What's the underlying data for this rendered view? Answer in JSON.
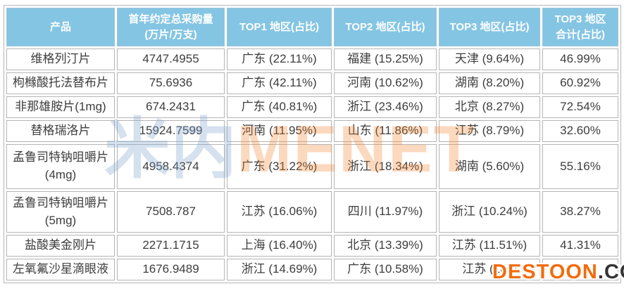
{
  "chart_data": {
    "type": "table",
    "columns": [
      {
        "line1": "产品"
      },
      {
        "line1": "首年约定总采购量",
        "line2": "(万片/万支)"
      },
      {
        "line1": "TOP1 地区(占比)"
      },
      {
        "line1": "TOP2 地区(占比)"
      },
      {
        "line1": "TOP3 地区(占比)"
      },
      {
        "line1": "TOP3 地区",
        "line2": "合计(占比)"
      }
    ],
    "rows": [
      {
        "product": "维格列汀片",
        "volume": "4747.4955",
        "top1": "广东 (22.11%)",
        "top2": "福建 (15.25%)",
        "top3": "天津 (9.64%)",
        "top3_total": "46.99%"
      },
      {
        "product": "枸橼酸托法替布片",
        "volume": "75.6936",
        "top1": "广东 (42.11%)",
        "top2": "河南 (10.62%)",
        "top3": "湖南 (8.20%)",
        "top3_total": "60.92%"
      },
      {
        "product": "非那雄胺片(1mg)",
        "volume": "674.2431",
        "top1": "广东 (40.81%)",
        "top2": "浙江 (23.46%)",
        "top3": "北京 (8.27%)",
        "top3_total": "72.54%"
      },
      {
        "product": "替格瑞洛片",
        "volume": "15924.7599",
        "top1": "河南 (11.95%)",
        "top2": "山东 (11.86%)",
        "top3": "江苏 (8.79%)",
        "top3_total": "32.60%"
      },
      {
        "product": "孟鲁司特钠咀嚼片(4mg)",
        "volume": "4958.4374",
        "top1": "广东 (31.22%)",
        "top2": "浙江 (18.34%)",
        "top3": "湖南 (5.60%)",
        "top3_total": "55.16%"
      },
      {
        "product": "孟鲁司特钠咀嚼片(5mg)",
        "volume": "7508.787",
        "top1": "江苏 (16.06%)",
        "top2": "四川 (11.97%)",
        "top3": "浙江 (10.24%)",
        "top3_total": "38.27%"
      },
      {
        "product": "盐酸美金刚片",
        "volume": "2271.1715",
        "top1": "上海 (16.40%)",
        "top2": "北京 (13.39%)",
        "top3": "江苏 (11.51%)",
        "top3_total": "41.31%"
      },
      {
        "product": "左氧氟沙星滴眼液",
        "volume": "1676.9489",
        "top1": "浙江 (14.69%)",
        "top2": "广东 (10.58%)",
        "top3": "江苏 (10.0",
        "top3_total": ""
      }
    ],
    "title": "",
    "legend_position": "none",
    "grid": true
  },
  "watermarks": {
    "center_cn": "米内",
    "center_en": "MENET",
    "brand": "DESTOON",
    "brand_suffix": ".COM"
  },
  "colors": {
    "header_bg": "#84c5e3",
    "header_text": "#ffffff",
    "body_text": "#3d3d3d",
    "border": "#b5b5b5",
    "watermark_orange": "#f26c0d",
    "watermark_dark": "#333333"
  }
}
